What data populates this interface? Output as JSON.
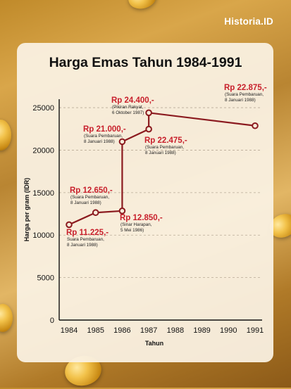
{
  "brand": "Historia.ID",
  "chart_data": {
    "type": "line",
    "title": "Harga Emas Tahun 1984-1991",
    "xlabel": "Tahun",
    "ylabel": "Harga per gram (IDR)",
    "x_ticks": [
      "1984",
      "1985",
      "1986",
      "1987",
      "1988",
      "1989",
      "1990",
      "1991"
    ],
    "y_ticks": [
      "0",
      "5000",
      "10000",
      "15000",
      "20000",
      "25000"
    ],
    "xlim": [
      1984,
      1991
    ],
    "ylim": [
      0,
      26000
    ],
    "grid": "horizontal dashed",
    "series": [
      {
        "x": [
          1984,
          1985,
          1986,
          1986,
          1987,
          1987,
          1991
        ],
        "y": [
          11225,
          12650,
          12850,
          21000,
          22475,
          24400,
          22875
        ]
      }
    ],
    "annotations": [
      {
        "price": "Rp 11.225,-",
        "source": [
          "Suara Pembaruan,",
          "8 Januari 1988)"
        ]
      },
      {
        "price": "Rp 12.650,-",
        "source": [
          "(Suara Pembaruan,",
          "8 Januari 1988)"
        ]
      },
      {
        "price": "Rp 12.850,-",
        "source": [
          "(Sinar Harapan,",
          "5 Mei 1986)"
        ]
      },
      {
        "price": "Rp 21.000,-",
        "source": [
          "(Suara Pembaruan,",
          "8 Januari 1988)"
        ]
      },
      {
        "price": "Rp 22.475,-",
        "source": [
          "(Suara Pembaruan,",
          "8 Januari 1988)"
        ]
      },
      {
        "price": "Rp 24.400,-",
        "source": [
          "(Pikiran Rakyat,",
          "6 Oktober 1987)"
        ]
      },
      {
        "price": "Rp 22.875,-",
        "source": [
          "(Suara Pembaruan,",
          "8 Januari 1988)"
        ]
      }
    ],
    "colors": {
      "line": "#8b1a1f",
      "price_text": "#c8202c"
    }
  }
}
